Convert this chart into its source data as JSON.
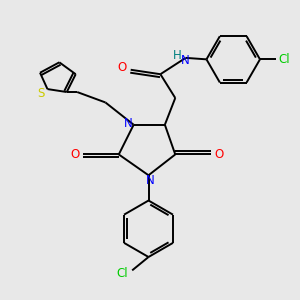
{
  "background_color": "#e8e8e8",
  "bond_color": "#000000",
  "N_color": "#0000ff",
  "O_color": "#ff0000",
  "S_color": "#cccc00",
  "H_color": "#008080",
  "Cl_color": "#00cc00",
  "fig_size": [
    3.0,
    3.0
  ],
  "dpi": 100,
  "xlim": [
    0,
    10
  ],
  "ylim": [
    0,
    10
  ]
}
